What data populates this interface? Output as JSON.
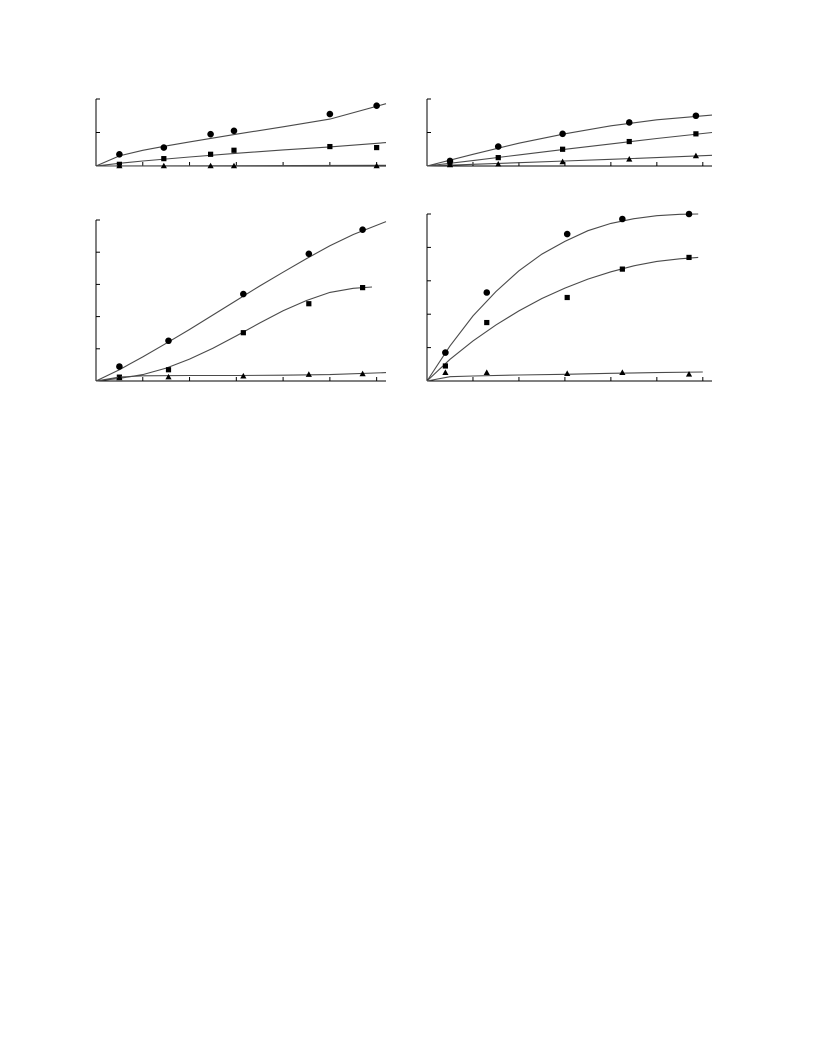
{
  "chart_data": [
    {
      "type": "scatter",
      "xlim": [
        0,
        6.2
      ],
      "ylim": [
        0,
        2
      ],
      "xticks": [
        0,
        1,
        2,
        3,
        4,
        5,
        6
      ],
      "yticks": [
        0,
        1,
        2
      ],
      "markers": {
        "circle": "circle-marker-icon",
        "square": "square-marker-icon",
        "triangle": "triangle-marker-icon"
      },
      "series": [
        {
          "marker": "circle",
          "points": [
            [
              0.5,
              0.35
            ],
            [
              1.45,
              0.55
            ],
            [
              2.45,
              0.95
            ],
            [
              2.95,
              1.05
            ],
            [
              5.0,
              1.55
            ],
            [
              6.0,
              1.8
            ]
          ],
          "fit": [
            [
              0,
              0
            ],
            [
              0.5,
              0.3
            ],
            [
              1,
              0.47
            ],
            [
              1.5,
              0.6
            ],
            [
              2,
              0.72
            ],
            [
              3,
              0.95
            ],
            [
              4,
              1.17
            ],
            [
              5,
              1.4
            ],
            [
              6.2,
              1.86
            ]
          ]
        },
        {
          "marker": "square",
          "points": [
            [
              0.5,
              0.05
            ],
            [
              1.45,
              0.22
            ],
            [
              2.45,
              0.35
            ],
            [
              2.95,
              0.47
            ],
            [
              5.0,
              0.58
            ],
            [
              6.0,
              0.55
            ]
          ],
          "fit": [
            [
              0,
              0
            ],
            [
              0.5,
              0.08
            ],
            [
              1,
              0.15
            ],
            [
              2,
              0.27
            ],
            [
              3,
              0.38
            ],
            [
              4,
              0.48
            ],
            [
              5,
              0.57
            ],
            [
              6.2,
              0.7
            ]
          ]
        },
        {
          "marker": "triangle",
          "points": [
            [
              0.5,
              0.0
            ],
            [
              1.45,
              0.0
            ],
            [
              2.45,
              0.0
            ],
            [
              2.95,
              0.0
            ],
            [
              6.0,
              0.0
            ]
          ],
          "fit": [
            [
              0,
              0
            ],
            [
              6.2,
              0.02
            ]
          ]
        }
      ]
    },
    {
      "type": "scatter",
      "xlim": [
        0,
        6.2
      ],
      "ylim": [
        0,
        2
      ],
      "xticks": [
        0,
        1,
        2,
        3,
        4,
        5,
        6
      ],
      "yticks": [
        0,
        1,
        2
      ],
      "markers": {
        "circle": "circle-marker-icon",
        "square": "square-marker-icon",
        "triangle": "triangle-marker-icon"
      },
      "series": [
        {
          "marker": "circle",
          "points": [
            [
              0.5,
              0.15
            ],
            [
              1.55,
              0.58
            ],
            [
              2.95,
              0.96
            ],
            [
              4.4,
              1.3
            ],
            [
              5.85,
              1.5
            ]
          ],
          "fit": [
            [
              0,
              0
            ],
            [
              1,
              0.35
            ],
            [
              2,
              0.68
            ],
            [
              3,
              0.96
            ],
            [
              4,
              1.2
            ],
            [
              5,
              1.38
            ],
            [
              6.2,
              1.52
            ]
          ]
        },
        {
          "marker": "square",
          "points": [
            [
              0.5,
              0.08
            ],
            [
              1.55,
              0.25
            ],
            [
              2.95,
              0.5
            ],
            [
              4.4,
              0.73
            ],
            [
              5.85,
              0.96
            ]
          ],
          "fit": [
            [
              0,
              0
            ],
            [
              1,
              0.16
            ],
            [
              2,
              0.33
            ],
            [
              3,
              0.5
            ],
            [
              4,
              0.66
            ],
            [
              5,
              0.82
            ],
            [
              6.2,
              1.0
            ]
          ]
        },
        {
          "marker": "triangle",
          "points": [
            [
              0.5,
              0.03
            ],
            [
              1.55,
              0.05
            ],
            [
              2.95,
              0.12
            ],
            [
              4.4,
              0.2
            ],
            [
              5.85,
              0.3
            ]
          ],
          "fit": [
            [
              0,
              0
            ],
            [
              1,
              0.05
            ],
            [
              2,
              0.1
            ],
            [
              3,
              0.15
            ],
            [
              4,
              0.2
            ],
            [
              5,
              0.25
            ],
            [
              6.2,
              0.32
            ]
          ]
        }
      ]
    },
    {
      "type": "scatter",
      "xlim": [
        0,
        6.2
      ],
      "ylim": [
        0,
        5
      ],
      "xticks": [
        0,
        1,
        2,
        3,
        4,
        5,
        6
      ],
      "yticks": [
        0,
        1,
        2,
        3,
        4,
        5
      ],
      "markers": {
        "circle": "circle-marker-icon",
        "square": "square-marker-icon",
        "triangle": "triangle-marker-icon"
      },
      "series": [
        {
          "marker": "circle",
          "points": [
            [
              0.5,
              0.45
            ],
            [
              1.55,
              1.25
            ],
            [
              3.15,
              2.7
            ],
            [
              4.55,
              3.95
            ],
            [
              5.7,
              4.7
            ]
          ],
          "fit": [
            [
              0,
              0
            ],
            [
              0.5,
              0.35
            ],
            [
              1,
              0.75
            ],
            [
              1.5,
              1.17
            ],
            [
              2,
              1.6
            ],
            [
              2.5,
              2.05
            ],
            [
              3,
              2.5
            ],
            [
              3.5,
              2.95
            ],
            [
              4,
              3.38
            ],
            [
              4.5,
              3.8
            ],
            [
              5,
              4.2
            ],
            [
              5.5,
              4.55
            ],
            [
              6.2,
              4.95
            ]
          ]
        },
        {
          "marker": "square",
          "points": [
            [
              0.5,
              0.12
            ],
            [
              1.55,
              0.35
            ],
            [
              3.15,
              1.5
            ],
            [
              4.55,
              2.4
            ],
            [
              5.7,
              2.9
            ]
          ],
          "fit": [
            [
              0,
              0
            ],
            [
              0.5,
              0.08
            ],
            [
              1,
              0.2
            ],
            [
              1.5,
              0.4
            ],
            [
              2,
              0.68
            ],
            [
              2.5,
              1.02
            ],
            [
              3,
              1.4
            ],
            [
              3.5,
              1.8
            ],
            [
              4,
              2.18
            ],
            [
              4.5,
              2.5
            ],
            [
              5,
              2.75
            ],
            [
              5.5,
              2.88
            ],
            [
              5.9,
              2.92
            ]
          ]
        },
        {
          "marker": "triangle",
          "points": [
            [
              0.5,
              0.1
            ],
            [
              1.55,
              0.12
            ],
            [
              3.15,
              0.15
            ],
            [
              4.55,
              0.2
            ],
            [
              5.7,
              0.22
            ]
          ],
          "fit": [
            [
              0,
              0
            ],
            [
              0.5,
              0.12
            ],
            [
              1,
              0.16
            ],
            [
              2,
              0.17
            ],
            [
              3,
              0.17
            ],
            [
              4,
              0.18
            ],
            [
              5,
              0.2
            ],
            [
              6.2,
              0.26
            ]
          ]
        }
      ]
    },
    {
      "type": "scatter",
      "xlim": [
        0,
        6.2
      ],
      "ylim": [
        0,
        5
      ],
      "xticks": [
        0,
        1,
        2,
        3,
        4,
        5,
        6
      ],
      "yticks": [
        0,
        1,
        2,
        3,
        4,
        5
      ],
      "markers": {
        "circle": "circle-marker-icon",
        "square": "square-marker-icon",
        "triangle": "triangle-marker-icon"
      },
      "series": [
        {
          "marker": "circle",
          "points": [
            [
              0.4,
              0.85
            ],
            [
              1.3,
              2.65
            ],
            [
              3.05,
              4.4
            ],
            [
              4.25,
              4.85
            ],
            [
              5.7,
              5.0
            ]
          ],
          "fit": [
            [
              0,
              0
            ],
            [
              0.5,
              1.05
            ],
            [
              1,
              1.95
            ],
            [
              1.5,
              2.68
            ],
            [
              2,
              3.3
            ],
            [
              2.5,
              3.8
            ],
            [
              3,
              4.18
            ],
            [
              3.5,
              4.5
            ],
            [
              4,
              4.72
            ],
            [
              4.5,
              4.86
            ],
            [
              5,
              4.95
            ],
            [
              5.5,
              4.99
            ],
            [
              5.9,
              5.0
            ]
          ]
        },
        {
          "marker": "square",
          "points": [
            [
              0.4,
              0.45
            ],
            [
              1.3,
              1.75
            ],
            [
              3.05,
              2.5
            ],
            [
              4.25,
              3.35
            ],
            [
              5.7,
              3.7
            ]
          ],
          "fit": [
            [
              0,
              0
            ],
            [
              0.5,
              0.65
            ],
            [
              1,
              1.2
            ],
            [
              1.5,
              1.68
            ],
            [
              2,
              2.1
            ],
            [
              2.5,
              2.47
            ],
            [
              3,
              2.78
            ],
            [
              3.5,
              3.05
            ],
            [
              4,
              3.27
            ],
            [
              4.5,
              3.45
            ],
            [
              5,
              3.58
            ],
            [
              5.5,
              3.66
            ],
            [
              5.9,
              3.7
            ]
          ]
        },
        {
          "marker": "triangle",
          "points": [
            [
              0.4,
              0.25
            ],
            [
              1.3,
              0.25
            ],
            [
              3.05,
              0.22
            ],
            [
              4.25,
              0.25
            ],
            [
              5.7,
              0.2
            ]
          ],
          "fit": [
            [
              0,
              0
            ],
            [
              0.5,
              0.13
            ],
            [
              1,
              0.15
            ],
            [
              2,
              0.18
            ],
            [
              3,
              0.2
            ],
            [
              4,
              0.23
            ],
            [
              5,
              0.25
            ],
            [
              6,
              0.27
            ]
          ]
        }
      ]
    }
  ]
}
